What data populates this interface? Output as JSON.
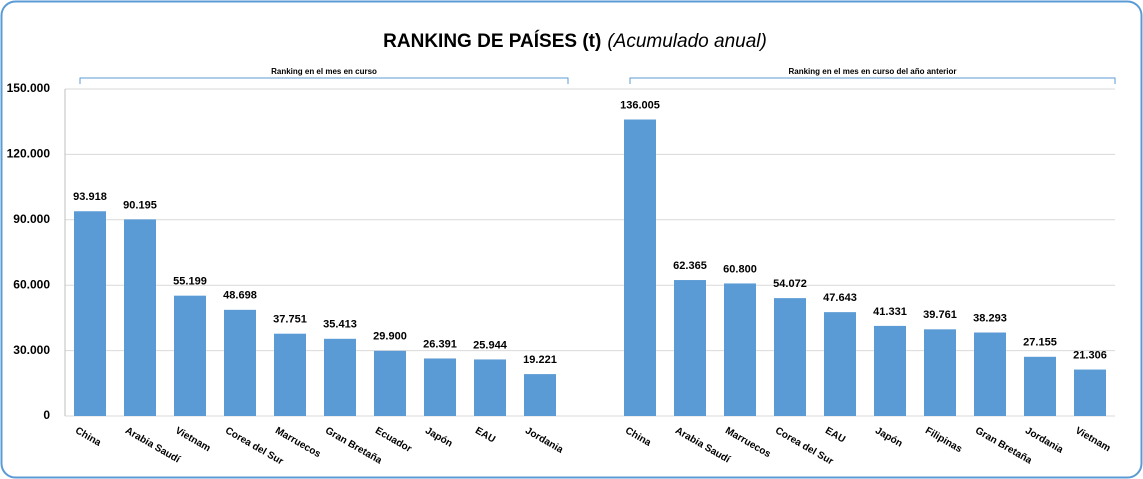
{
  "chart_data": {
    "type": "bar",
    "title": "RANKING DE PAÍSES (t)",
    "subtitle": "(Acumulado anual)",
    "annotations": [
      "Ranking en el mes en curso",
      "Ranking en el mes en curso del año anterior"
    ],
    "categories": [
      "China",
      "Arabia Saudí",
      "Vietnam",
      "Corea del Sur",
      "Marruecos",
      "Gran Bretaña",
      "Ecuador",
      "Japón",
      "EAU",
      "Jordania",
      null,
      "China",
      "Arabia Saudí",
      "Marruecos",
      "Corea del Sur",
      "EAU",
      "Japón",
      "Filipinas",
      "Gran Bretaña",
      "Jordania",
      "Vietnam"
    ],
    "values": [
      93918,
      90195,
      55199,
      48698,
      37751,
      35413,
      29900,
      26391,
      25944,
      19221,
      null,
      136005,
      62365,
      60800,
      54072,
      47643,
      41331,
      39761,
      38293,
      27155,
      21306
    ],
    "value_labels": [
      "93.918",
      "90.195",
      "55.199",
      "48.698",
      "37.751",
      "35.413",
      "29.900",
      "26.391",
      "25.944",
      "19.221",
      null,
      "136.005",
      "62.365",
      "60.800",
      "54.072",
      "47.643",
      "41.331",
      "39.761",
      "38.293",
      "27.155",
      "21.306"
    ],
    "color": "#5b9bd5",
    "ylim": [
      0,
      150000
    ],
    "yticks": [
      0,
      {
        "value": 30000,
        "label": "30.000"
      },
      {
        "value": 60000,
        "label": "60.000"
      },
      {
        "value": 90000,
        "label": "90.000"
      },
      {
        "value": 120000,
        "label": "120.000"
      },
      {
        "value": 150000,
        "label": "150.000"
      }
    ],
    "grid": true
  }
}
